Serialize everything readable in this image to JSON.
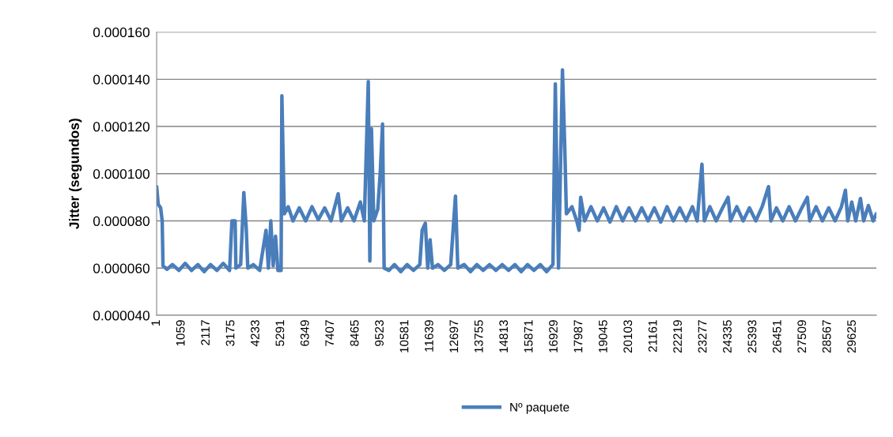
{
  "chart_data": {
    "type": "line",
    "ylabel": "Jitter (segundos)",
    "legend": "bottom",
    "grid": "y",
    "marker": "none",
    "line_style": "solid",
    "xlim": [
      0,
      30640
    ],
    "ylim": [
      4e-05,
      0.00016
    ],
    "yticks": [
      {
        "value": 4e-05,
        "label": "0.000040"
      },
      {
        "value": 6e-05,
        "label": "0.000060"
      },
      {
        "value": 8e-05,
        "label": "0.000080"
      },
      {
        "value": 0.0001,
        "label": "0.000100"
      },
      {
        "value": 0.00012,
        "label": "0.000120"
      },
      {
        "value": 0.00014,
        "label": "0.000140"
      },
      {
        "value": 0.00016,
        "label": "0.000160"
      }
    ],
    "xticks": [
      1,
      1059,
      2117,
      3175,
      4233,
      5291,
      6349,
      7407,
      8465,
      9523,
      10581,
      11639,
      12697,
      13755,
      14813,
      15871,
      16929,
      17987,
      19045,
      20103,
      21161,
      22219,
      23277,
      24335,
      25393,
      26451,
      27509,
      28567,
      29625
    ],
    "series": [
      {
        "name": "Nº paquete",
        "color": "#4a7ebb",
        "x": [
          1,
          68,
          170,
          237,
          271,
          440,
          676,
          946,
          1216,
          1486,
          1755,
          2025,
          2295,
          2565,
          2835,
          3105,
          3206,
          3341,
          3375,
          3577,
          3712,
          3814,
          3881,
          4117,
          4387,
          4657,
          4758,
          4860,
          4961,
          5062,
          5163,
          5298,
          5332,
          5433,
          5602,
          5804,
          6074,
          6344,
          6614,
          6884,
          7154,
          7424,
          7728,
          7862,
          8132,
          8402,
          8672,
          8841,
          9010,
          9077,
          9145,
          9246,
          9414,
          9516,
          9617,
          9685,
          9887,
          10123,
          10393,
          10663,
          10933,
          11203,
          11304,
          11439,
          11540,
          11641,
          11743,
          11979,
          12249,
          12519,
          12721,
          12822,
          13092,
          13362,
          13632,
          13902,
          14172,
          14442,
          14712,
          14982,
          15251,
          15521,
          15791,
          16061,
          16331,
          16601,
          16871,
          16972,
          17107,
          17276,
          17377,
          17444,
          17681,
          17883,
          17985,
          18052,
          18221,
          18490,
          18760,
          19030,
          19300,
          19570,
          19840,
          20110,
          20380,
          20650,
          20920,
          21190,
          21460,
          21730,
          21999,
          22269,
          22539,
          22809,
          23011,
          23214,
          23315,
          23551,
          23821,
          24091,
          24327,
          24428,
          24698,
          24968,
          25237,
          25507,
          25777,
          26047,
          26148,
          26385,
          26655,
          26925,
          27195,
          27465,
          27701,
          27802,
          28072,
          28342,
          28612,
          28882,
          29152,
          29321,
          29422,
          29591,
          29760,
          29962,
          30097,
          30299,
          30501,
          30636
        ],
        "values": [
          9.45e-05,
          8.7e-05,
          8.55e-05,
          8e-05,
          6.1e-05,
          5.95e-05,
          6.15e-05,
          5.9e-05,
          6.2e-05,
          5.9e-05,
          6.15e-05,
          5.85e-05,
          6.15e-05,
          5.9e-05,
          6.2e-05,
          5.9e-05,
          8e-05,
          8e-05,
          6e-05,
          6.15e-05,
          9.2e-05,
          7.7e-05,
          6e-05,
          6.15e-05,
          5.9e-05,
          7.6e-05,
          6e-05,
          8e-05,
          6.1e-05,
          7.35e-05,
          5.9e-05,
          5.9e-05,
          0.000133,
          8.3e-05,
          8.6e-05,
          8e-05,
          8.55e-05,
          8e-05,
          8.6e-05,
          8.05e-05,
          8.55e-05,
          8e-05,
          9.15e-05,
          8e-05,
          8.55e-05,
          8e-05,
          8.8e-05,
          8e-05,
          0.000139,
          6.3e-05,
          0.000119,
          8e-05,
          8.5e-05,
          0.0001,
          0.000121,
          6e-05,
          5.9e-05,
          6.15e-05,
          5.85e-05,
          6.15e-05,
          5.9e-05,
          6.15e-05,
          7.6e-05,
          7.9e-05,
          6e-05,
          7.2e-05,
          6e-05,
          6.15e-05,
          5.9e-05,
          6.15e-05,
          9.05e-05,
          6e-05,
          6.15e-05,
          5.85e-05,
          6.15e-05,
          5.9e-05,
          6.15e-05,
          5.9e-05,
          6.15e-05,
          5.9e-05,
          6.15e-05,
          5.85e-05,
          6.15e-05,
          5.9e-05,
          6.15e-05,
          5.85e-05,
          6.15e-05,
          0.000138,
          6e-05,
          0.000144,
          0.00011,
          8.3e-05,
          8.6e-05,
          8e-05,
          7.6e-05,
          9e-05,
          8e-05,
          8.6e-05,
          8e-05,
          8.55e-05,
          7.95e-05,
          8.6e-05,
          8e-05,
          8.55e-05,
          8e-05,
          8.55e-05,
          8e-05,
          8.55e-05,
          7.95e-05,
          8.6e-05,
          8e-05,
          8.55e-05,
          8e-05,
          8.6e-05,
          8e-05,
          0.000104,
          8e-05,
          8.6e-05,
          8e-05,
          8.55e-05,
          9e-05,
          8e-05,
          8.6e-05,
          8e-05,
          8.55e-05,
          8e-05,
          8.6e-05,
          9.45e-05,
          8e-05,
          8.55e-05,
          8e-05,
          8.6e-05,
          8e-05,
          8.55e-05,
          9e-05,
          8e-05,
          8.6e-05,
          8e-05,
          8.55e-05,
          8e-05,
          8.6e-05,
          9.3e-05,
          8e-05,
          8.8e-05,
          8e-05,
          8.95e-05,
          8e-05,
          8.65e-05,
          8e-05,
          8.3e-05
        ]
      }
    ]
  }
}
